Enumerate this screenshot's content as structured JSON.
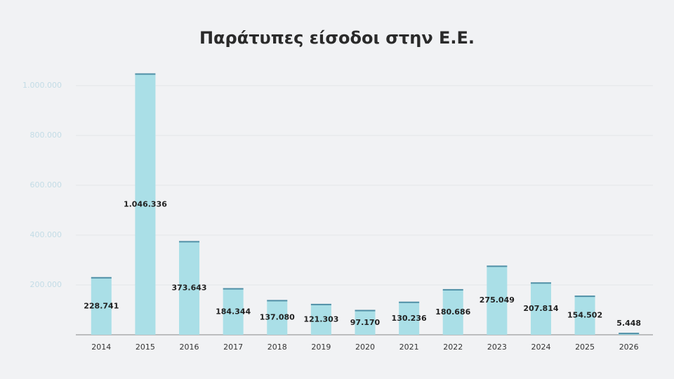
{
  "chart_data": {
    "type": "bar",
    "title": "Παράτυπες είσοδοι στην Ε.Ε.",
    "categories": [
      "2014",
      "2015",
      "2016",
      "2017",
      "2018",
      "2019",
      "2020",
      "2021",
      "2022",
      "2023",
      "2024",
      "2025",
      "2026"
    ],
    "values": [
      228741,
      1046336,
      373643,
      184344,
      137080,
      121303,
      97170,
      130236,
      180686,
      275049,
      207814,
      154502,
      5448
    ],
    "value_labels": [
      "228.741",
      "1.046.336",
      "373.643",
      "184.344",
      "137.080",
      "121.303",
      "97.170",
      "130.236",
      "180.686",
      "275.049",
      "207.814",
      "154.502",
      "5.448"
    ],
    "color": "#aadfe7",
    "edge_color": "#4f8fa6",
    "ylim": [
      0,
      1100000
    ],
    "yticks": [
      {
        "value": 200000,
        "label": "200.000"
      },
      {
        "value": 400000,
        "label": "400.000"
      },
      {
        "value": 600000,
        "label": "600.000"
      },
      {
        "value": 800000,
        "label": "800.000"
      },
      {
        "value": 1000000,
        "label": "1.000.000"
      }
    ],
    "grid": true
  }
}
